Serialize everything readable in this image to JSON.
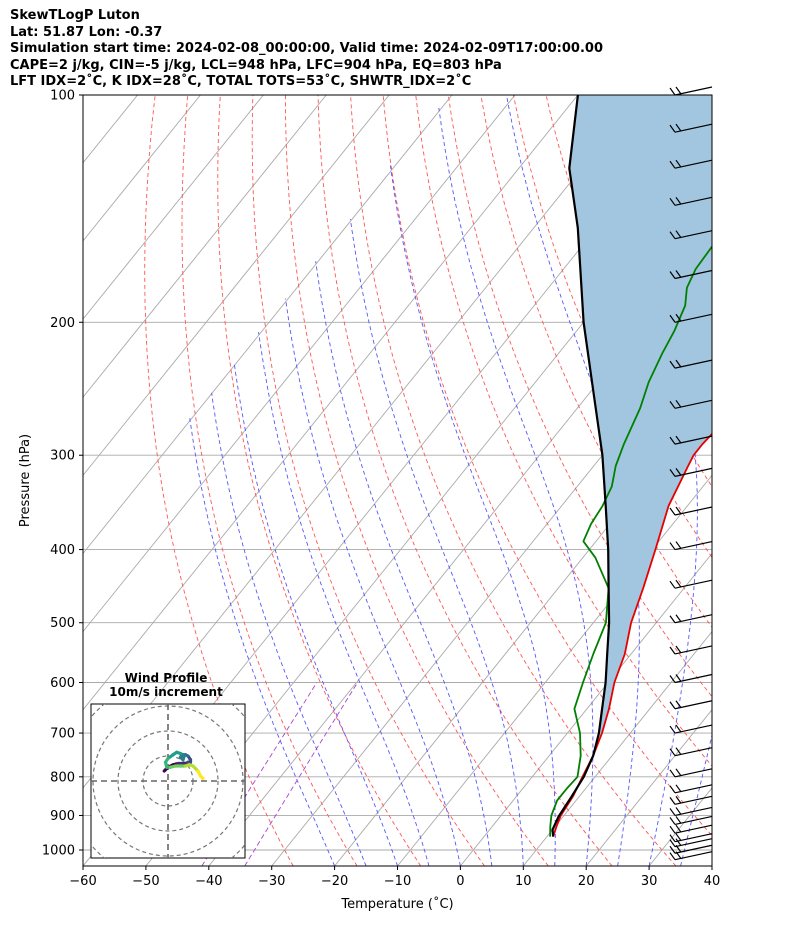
{
  "header": {
    "lines": [
      "SkewTLogP Luton",
      "Lat: 51.87   Lon: -0.37",
      "Simulation start time: 2024-02-08_00:00:00, Valid time: 2024-02-09T17:00:00.00",
      "CAPE=2 j/kg, CIN=-5 j/kg, LCL=948 hPa, LFC=904 hPa, EQ=803 hPa",
      "LFT IDX=2˚C, K IDX=28˚C, TOTAL TOTS=53˚C, SHWTR_IDX=2˚C"
    ]
  },
  "chart_data": {
    "type": "skewt",
    "xlabel": "Temperature (˚C)",
    "ylabel": "Pressure (hPa)",
    "xlim": [
      -60,
      40
    ],
    "ylim": [
      1050,
      100
    ],
    "x_ticks": [
      -60,
      -50,
      -40,
      -30,
      -20,
      -10,
      0,
      10,
      20,
      30,
      40
    ],
    "x_tick_labels": [
      "−60",
      "−50",
      "−40",
      "−30",
      "−20",
      "−10",
      "0",
      "10",
      "20",
      "30",
      "40"
    ],
    "y_ticks": [
      1000,
      900,
      800,
      700,
      600,
      500,
      400,
      300,
      200,
      100
    ],
    "y_tick_labels": [
      "1000",
      "900",
      "800",
      "700",
      "600",
      "500",
      "400",
      "300",
      "200",
      "100"
    ],
    "isobars_grid": true,
    "dry_adiabat_color": "#ff5555",
    "moist_adiabat_color": "#5555ff",
    "mixing_ratio_color": "#aa44cc",
    "isotherm_color": "#aaaaaa",
    "cape_fill_color": "#a2c6df",
    "series": [
      {
        "name": "Temperature",
        "color": "#e80000",
        "p": [
          960,
          930,
          900,
          850,
          800,
          750,
          700,
          650,
          600,
          550,
          500,
          450,
          400,
          350,
          310,
          300,
          290,
          270,
          250,
          220,
          180,
          150,
          130,
          110,
          100
        ],
        "t": [
          11,
          10.2,
          9.5,
          9,
          8,
          7,
          5.5,
          3.5,
          1,
          -1,
          -4,
          -6.5,
          -9.5,
          -13,
          -15,
          -15.5,
          -15.5,
          -15,
          -13.5,
          -10,
          -6.5,
          -4,
          -3,
          0,
          1
        ]
      },
      {
        "name": "Dewpoint",
        "color": "#008000",
        "p": [
          960,
          930,
          900,
          860,
          830,
          800,
          750,
          700,
          650,
          600,
          550,
          500,
          450,
          410,
          390,
          370,
          350,
          330,
          310,
          290,
          260,
          240,
          220,
          205,
          190,
          180,
          170,
          150,
          130,
          110,
          100
        ],
        "t": [
          10.5,
          9.2,
          8,
          7,
          7,
          7.2,
          5,
          2,
          -2,
          -4,
          -6,
          -8,
          -12,
          -18,
          -22,
          -23,
          -23.5,
          -24.5,
          -26.5,
          -28,
          -30,
          -32,
          -33.5,
          -34.5,
          -36,
          -38,
          -39,
          -39.5,
          -40,
          -40,
          -40
        ]
      },
      {
        "name": "Parcel",
        "color": "#000000",
        "p": [
          960,
          940,
          904,
          850,
          800,
          750,
          700,
          650,
          600,
          550,
          500,
          450,
          400,
          350,
          300,
          250,
          200,
          150,
          125,
          100
        ],
        "t": [
          11,
          10,
          9.3,
          8.8,
          8.2,
          7,
          5,
          2.4,
          -0.4,
          -3.8,
          -7.5,
          -12,
          -17,
          -23,
          -30,
          -39,
          -50,
          -63,
          -72,
          -80
        ]
      }
    ],
    "wind_barbs": {
      "pressures": [
        1030,
        1010,
        990,
        975,
        950,
        925,
        900,
        870,
        840,
        800,
        750,
        700,
        650,
        600,
        550,
        500,
        450,
        400,
        360,
        320,
        290,
        260,
        230,
        200,
        175,
        155,
        140,
        125,
        112,
        100
      ]
    },
    "inset": {
      "title": "Wind Profile",
      "subtitle": "10m/s increment",
      "colormap": "viridis",
      "u": [
        -1.5,
        0,
        2,
        4,
        5.5,
        7,
        8,
        9,
        9,
        8,
        7,
        5.5,
        5,
        6,
        6.5,
        5,
        3.5,
        2,
        0,
        -1,
        -0.5,
        1,
        3,
        5,
        7,
        8.5,
        10,
        12,
        13,
        14
      ],
      "v": [
        4,
        5.5,
        6.5,
        7,
        7,
        7,
        7.5,
        7.5,
        8.5,
        10,
        10.5,
        10.5,
        9.5,
        8.5,
        10,
        11,
        11.5,
        10.5,
        9,
        7.5,
        5.5,
        5.5,
        6,
        6,
        6,
        6.5,
        6,
        4,
        2,
        1
      ]
    }
  }
}
